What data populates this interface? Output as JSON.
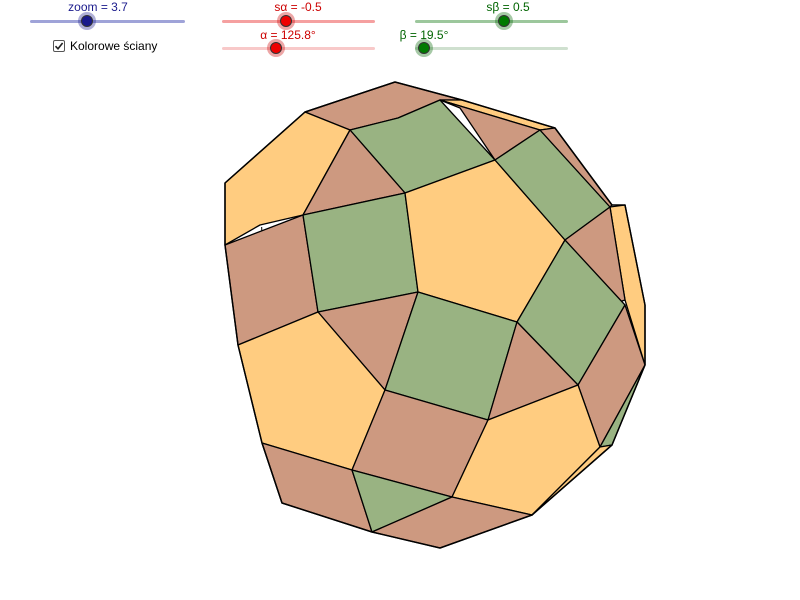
{
  "sliders": [
    {
      "id": "zoom",
      "label": "zoom = 3.7",
      "value": 3.7,
      "color": "#1a1a8c",
      "track_color": "#9fa3d8"
    },
    {
      "id": "s_alpha",
      "label": "sα = -0.5",
      "value": -0.5,
      "color": "#cc0000",
      "track_color": "#f5a0a0"
    },
    {
      "id": "alpha",
      "label": "α = 125.8°",
      "value": 125.8,
      "color": "#cc0000",
      "track_color": "#f8c9c9"
    },
    {
      "id": "s_beta",
      "label": "sβ = 0.5",
      "value": 0.5,
      "color": "#006400",
      "track_color": "#9cc79c"
    },
    {
      "id": "beta",
      "label": "β = 19.5°",
      "value": 19.5,
      "color": "#006400",
      "track_color": "#cfe0cf"
    }
  ],
  "checkbox": {
    "label": "Kolorowe ściany",
    "checked": true
  },
  "colors": {
    "face_orange": "#ffcc80",
    "face_brown": "#cd9980",
    "face_green": "#99b382",
    "edge": "#000000"
  }
}
